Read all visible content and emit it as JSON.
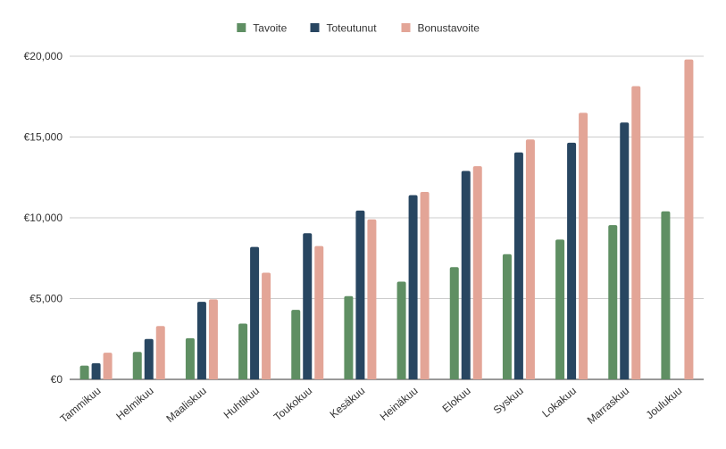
{
  "chart_data": {
    "type": "bar",
    "title": "",
    "xlabel": "",
    "ylabel": "",
    "categories": [
      "Tammikuu",
      "Helmikuu",
      "Maaliskuu",
      "Huhtikuu",
      "Toukokuu",
      "Kesäkuu",
      "Heinäkuu",
      "Elokuu",
      "Syskuu",
      "Lokakuu",
      "Marraskuu",
      "Joulukuu"
    ],
    "series": [
      {
        "name": "Tavoite",
        "color": "#5f8f63",
        "values": [
          850,
          1700,
          2550,
          3450,
          4300,
          5150,
          6050,
          6950,
          7750,
          8650,
          9550,
          10400
        ]
      },
      {
        "name": "Toteutunut",
        "color": "#284661",
        "values": [
          1000,
          2500,
          4800,
          8200,
          9050,
          10450,
          11400,
          12900,
          14050,
          14650,
          15900,
          null
        ]
      },
      {
        "name": "Bonustavoite",
        "color": "#e3a597",
        "values": [
          1650,
          3300,
          4950,
          6600,
          8250,
          9900,
          11600,
          13200,
          14850,
          16500,
          18150,
          19800
        ]
      }
    ],
    "ylim": [
      0,
      20000
    ],
    "yticks": [
      0,
      5000,
      10000,
      15000,
      20000
    ],
    "ytick_labels": [
      "€0",
      "€5,000",
      "€10,000",
      "€15,000",
      "€20,000"
    ],
    "grid": true,
    "legend_position": "top-center"
  }
}
